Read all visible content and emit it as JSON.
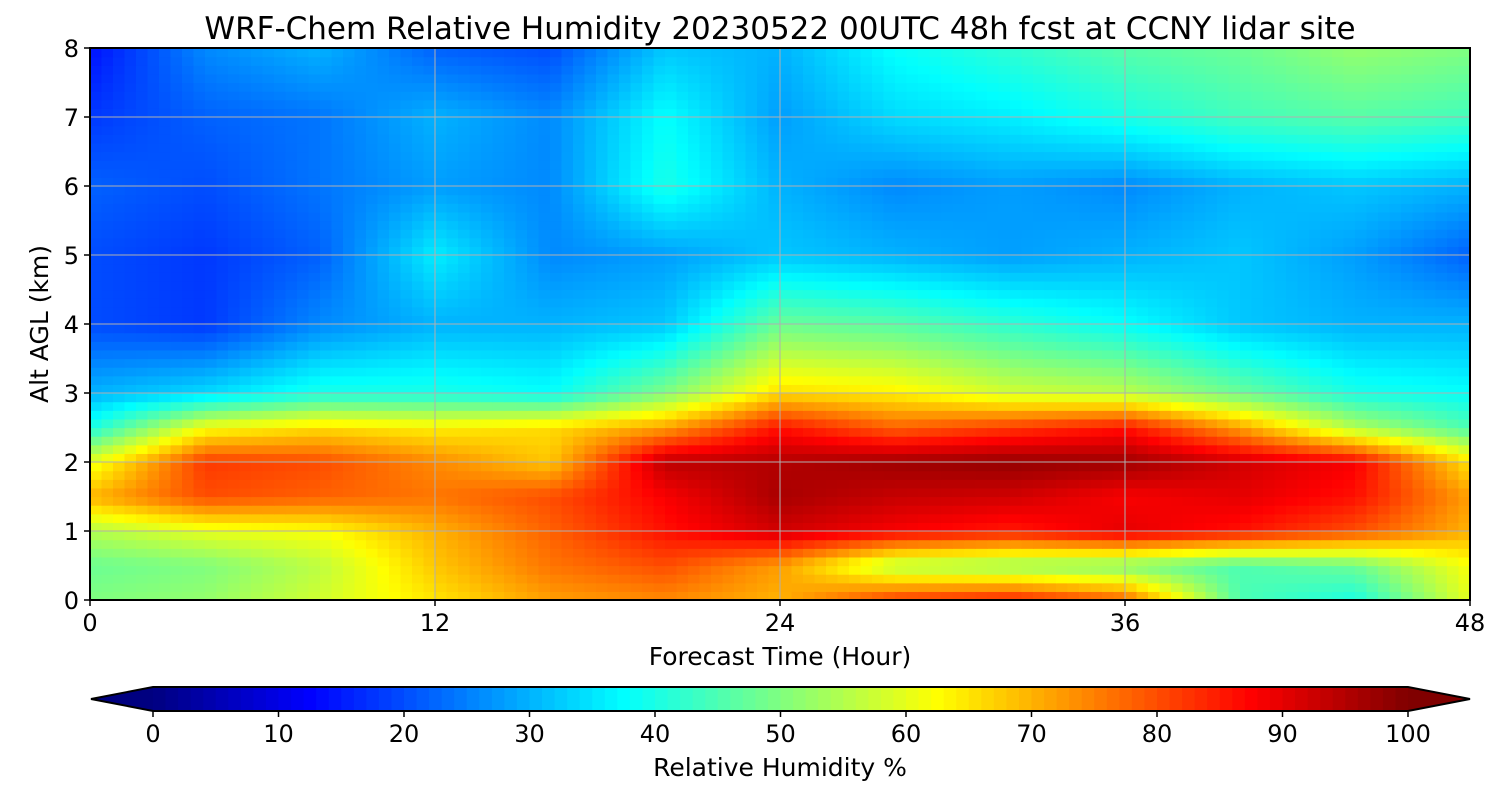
{
  "chart_data": {
    "type": "heatmap",
    "title": "WRF-Chem Relative Humidity 20230522 00UTC 48h fcst at CCNY lidar site",
    "xlabel": "Forecast Time (Hour)",
    "ylabel": "Alt AGL (km)",
    "xlim": [
      0,
      48
    ],
    "ylim": [
      0,
      8
    ],
    "x_ticks": [
      "0",
      "12",
      "24",
      "36",
      "48"
    ],
    "y_ticks": [
      "0",
      "1",
      "2",
      "3",
      "4",
      "5",
      "6",
      "7",
      "8"
    ],
    "grid": true,
    "colormap": "jet",
    "colorbar": {
      "label": "Relative Humidity %",
      "range": [
        0,
        100
      ],
      "ticks": [
        "0",
        "10",
        "20",
        "30",
        "40",
        "50",
        "60",
        "70",
        "80",
        "90",
        "100"
      ],
      "extend": "both",
      "orientation": "horizontal"
    },
    "x": [
      0,
      4,
      8,
      12,
      16,
      20,
      24,
      28,
      32,
      36,
      40,
      44,
      48
    ],
    "y": [
      0,
      0.5,
      1,
      1.5,
      2,
      2.5,
      3,
      4,
      5,
      6,
      7,
      8
    ],
    "z": [
      [
        50,
        52,
        58,
        65,
        72,
        74,
        70,
        82,
        85,
        78,
        45,
        40,
        60
      ],
      [
        48,
        50,
        56,
        68,
        76,
        80,
        72,
        55,
        52,
        50,
        45,
        48,
        62
      ],
      [
        55,
        60,
        62,
        70,
        78,
        86,
        92,
        88,
        85,
        90,
        86,
        80,
        70
      ],
      [
        70,
        80,
        78,
        76,
        80,
        88,
        96,
        93,
        92,
        88,
        90,
        86,
        72
      ],
      [
        60,
        82,
        80,
        74,
        68,
        94,
        95,
        97,
        98,
        97,
        92,
        88,
        65
      ],
      [
        40,
        62,
        66,
        64,
        66,
        72,
        86,
        78,
        82,
        86,
        72,
        55,
        45
      ],
      [
        30,
        34,
        40,
        40,
        38,
        50,
        66,
        64,
        58,
        56,
        48,
        40,
        38
      ],
      [
        20,
        18,
        26,
        30,
        30,
        32,
        48,
        46,
        42,
        38,
        32,
        30,
        30
      ],
      [
        20,
        18,
        22,
        36,
        26,
        28,
        32,
        30,
        28,
        30,
        32,
        28,
        22
      ],
      [
        22,
        20,
        24,
        28,
        26,
        40,
        30,
        26,
        28,
        26,
        30,
        32,
        30
      ],
      [
        18,
        22,
        24,
        30,
        26,
        38,
        28,
        34,
        36,
        40,
        44,
        46,
        44
      ],
      [
        14,
        26,
        30,
        22,
        20,
        32,
        30,
        38,
        42,
        46,
        48,
        52,
        50
      ]
    ]
  }
}
